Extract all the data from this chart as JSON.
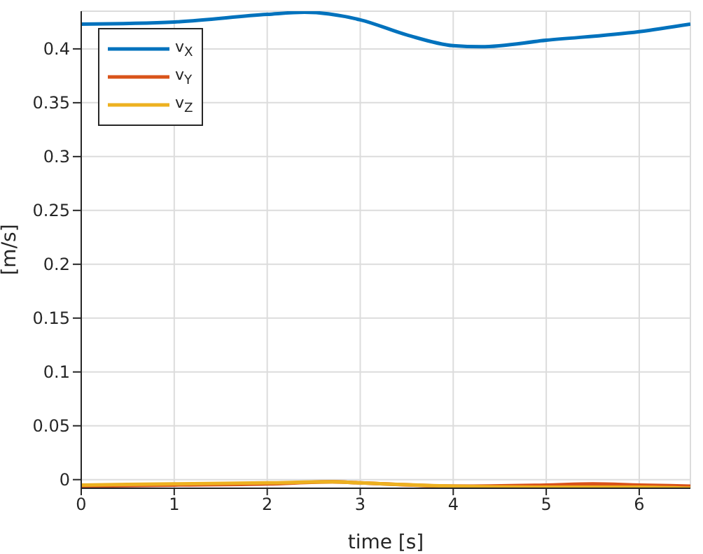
{
  "chart_data": {
    "type": "line",
    "xlabel": "time [s]",
    "ylabel": "[m/s]",
    "xlim": [
      0,
      6.55
    ],
    "xticks": [
      0,
      1,
      2,
      3,
      4,
      5,
      6
    ],
    "ylim": [
      -0.008,
      0.435
    ],
    "yticks": [
      0,
      0.05,
      0.1,
      0.15,
      0.2,
      0.25,
      0.3,
      0.35,
      0.4
    ],
    "grid": true,
    "legend": "top left",
    "marker": "none",
    "line_style": "solid",
    "series": [
      {
        "name": "v$_{X}$",
        "color": "#0072bd",
        "x": [
          0,
          1,
          2,
          2.4,
          3,
          3.5,
          4,
          4.3,
          5,
          6,
          6.55
        ],
        "values": [
          0.423,
          0.425,
          0.432,
          0.434,
          0.427,
          0.413,
          0.403,
          0.402,
          0.408,
          0.416,
          0.423
        ]
      },
      {
        "name": "v$_{Y}$",
        "color": "#d95319",
        "x": [
          0,
          1,
          2,
          2.7,
          3,
          4,
          5,
          5.5,
          6,
          6.55
        ],
        "values": [
          -0.006,
          -0.005,
          -0.004,
          -0.002,
          -0.003,
          -0.006,
          -0.005,
          -0.004,
          -0.005,
          -0.006
        ]
      },
      {
        "name": "v$_{Z}$",
        "color": "#edb120",
        "x": [
          0,
          1,
          2,
          2.7,
          3,
          4,
          5,
          6,
          6.55
        ],
        "values": [
          -0.005,
          -0.004,
          -0.003,
          -0.002,
          -0.003,
          -0.006,
          -0.007,
          -0.007,
          -0.008
        ]
      }
    ]
  }
}
